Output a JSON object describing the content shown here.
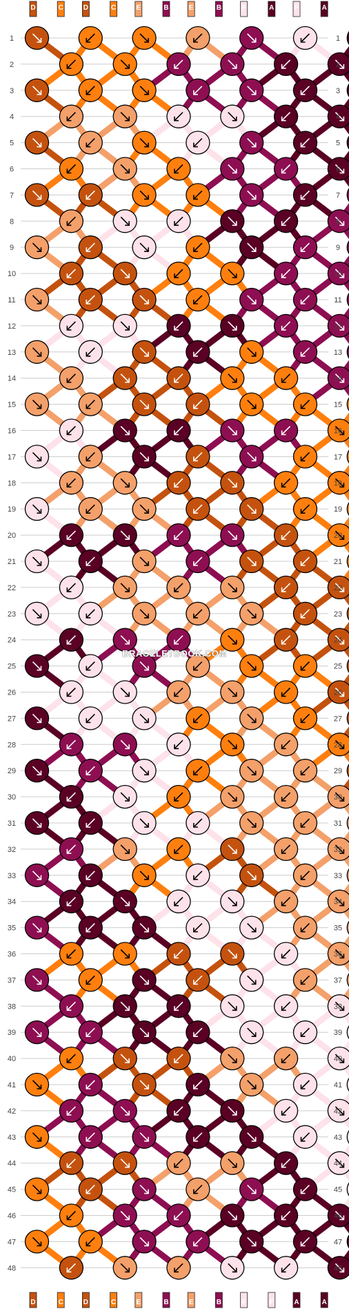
{
  "watermark": "BRACELETBOOK.COM",
  "colors": {
    "D": "#c4520e",
    "C": "#ff7f0e",
    "E": "#f4a06a",
    "B": "#8e0e52",
    "F": "#fde2ea",
    "A": "#5a0024"
  },
  "top_strands": [
    "D",
    "C",
    "D",
    "C",
    "E",
    "B",
    "E",
    "B",
    "F",
    "A",
    "F",
    "A"
  ],
  "bottom_strands": [
    "D",
    "C",
    "D",
    "C",
    "E",
    "B",
    "E",
    "B",
    "F",
    "F",
    "A",
    "A"
  ],
  "rows": [
    "1",
    "2",
    "3",
    "4",
    "5",
    "6",
    "7",
    "8",
    "9",
    "10",
    "11",
    "12",
    "13",
    "14",
    "15",
    "16",
    "17",
    "18",
    "19",
    "20",
    "21",
    "22",
    "23",
    "24",
    "25",
    "26",
    "27",
    "28",
    "29",
    "30",
    "31",
    "32",
    "33",
    "34",
    "35",
    "36",
    "37",
    "38",
    "39",
    "40",
    "41",
    "42",
    "43",
    "44",
    "45",
    "46",
    "47",
    "48"
  ],
  "knot_grid": [
    [
      "D",
      "C",
      "C",
      "E",
      "B",
      "F",
      "A"
    ],
    [
      "C",
      "C",
      "B",
      "B",
      "A",
      "A"
    ],
    [
      "D",
      "C",
      "C",
      "B",
      "B",
      "A",
      "A"
    ],
    [
      "E",
      "E",
      "F",
      "F",
      "A",
      "A"
    ],
    [
      "D",
      "E",
      "C",
      "F",
      "B",
      "A",
      "A"
    ],
    [
      "C",
      "E",
      "C",
      "B",
      "B",
      "A"
    ],
    [
      "D",
      "D",
      "C",
      "C",
      "B",
      "A",
      "B"
    ],
    [
      "E",
      "F",
      "F",
      "A",
      "A",
      "B"
    ],
    [
      "E",
      "D",
      "F",
      "C",
      "A",
      "B",
      "B"
    ],
    [
      "D",
      "D",
      "C",
      "C",
      "B",
      "B"
    ],
    [
      "E",
      "D",
      "D",
      "C",
      "B",
      "B",
      "B"
    ],
    [
      "F",
      "F",
      "A",
      "A",
      "B",
      "B"
    ],
    [
      "E",
      "F",
      "D",
      "A",
      "C",
      "B",
      "B"
    ],
    [
      "E",
      "D",
      "D",
      "C",
      "C",
      "B"
    ],
    [
      "E",
      "E",
      "D",
      "D",
      "C",
      "C",
      "C"
    ],
    [
      "F",
      "A",
      "A",
      "B",
      "B",
      "C"
    ],
    [
      "F",
      "E",
      "A",
      "D",
      "B",
      "C",
      "C"
    ],
    [
      "E",
      "E",
      "D",
      "D",
      "C",
      "C"
    ],
    [
      "F",
      "E",
      "E",
      "D",
      "D",
      "C",
      "C"
    ],
    [
      "A",
      "A",
      "B",
      "B",
      "D",
      "C"
    ],
    [
      "F",
      "A",
      "E",
      "B",
      "D",
      "D",
      "C"
    ],
    [
      "F",
      "E",
      "E",
      "E",
      "D",
      "D"
    ],
    [
      "F",
      "F",
      "E",
      "E",
      "E",
      "D",
      "D"
    ],
    [
      "A",
      "B",
      "B",
      "C",
      "D",
      "D"
    ],
    [
      "A",
      "F",
      "B",
      "E",
      "C",
      "C",
      "D"
    ],
    [
      "F",
      "F",
      "E",
      "E",
      "C",
      "D"
    ],
    [
      "A",
      "F",
      "F",
      "C",
      "E",
      "C",
      "D"
    ],
    [
      "B",
      "B",
      "F",
      "C",
      "E",
      "C"
    ],
    [
      "A",
      "B",
      "F",
      "C",
      "E",
      "E",
      "D"
    ],
    [
      "A",
      "F",
      "C",
      "E",
      "E",
      "E"
    ],
    [
      "A",
      "A",
      "F",
      "F",
      "E",
      "E",
      "E"
    ],
    [
      "B",
      "E",
      "C",
      "D",
      "E",
      "E"
    ],
    [
      "B",
      "A",
      "C",
      "F",
      "D",
      "E",
      "E"
    ],
    [
      "A",
      "A",
      "F",
      "F",
      "E",
      "E"
    ],
    [
      "B",
      "A",
      "A",
      "F",
      "F",
      "E",
      "E"
    ],
    [
      "C",
      "C",
      "D",
      "D",
      "F",
      "E"
    ],
    [
      "B",
      "C",
      "A",
      "D",
      "F",
      "E",
      "E"
    ],
    [
      "B",
      "A",
      "A",
      "F",
      "F",
      "F"
    ],
    [
      "B",
      "B",
      "A",
      "A",
      "F",
      "F",
      "F"
    ],
    [
      "C",
      "D",
      "D",
      "E",
      "E",
      "F"
    ],
    [
      "C",
      "B",
      "D",
      "A",
      "E",
      "F",
      "F"
    ],
    [
      "B",
      "B",
      "A",
      "A",
      "F",
      "F"
    ],
    [
      "C",
      "B",
      "B",
      "A",
      "A",
      "F",
      "F"
    ],
    [
      "D",
      "D",
      "E",
      "E",
      "A",
      "F"
    ],
    [
      "C",
      "D",
      "B",
      "E",
      "B",
      "A",
      "F"
    ],
    [
      "C",
      "B",
      "B",
      "A",
      "A",
      "A"
    ],
    [
      "C",
      "C",
      "B",
      "B",
      "A",
      "A",
      "A"
    ],
    [
      "D",
      "E",
      "E",
      "F",
      "F",
      "A"
    ]
  ]
}
